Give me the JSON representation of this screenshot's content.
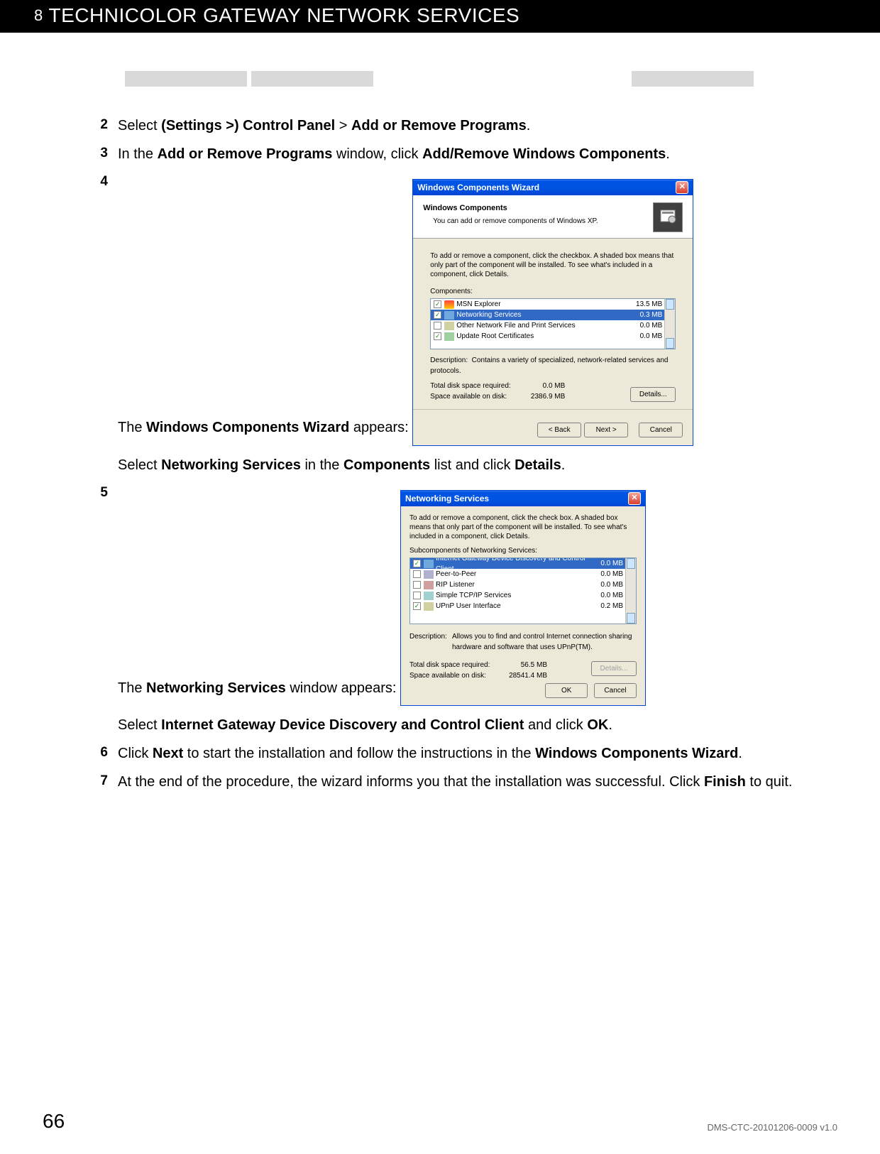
{
  "header": {
    "chapter_num": "8",
    "title": "TECHNICOLOR GATEWAY NETWORK SERVICES"
  },
  "tabs": {
    "widths": [
      172,
      172,
      358,
      172
    ],
    "gaps": [
      176,
      0,
      0,
      0
    ],
    "color": "#d9d9d9"
  },
  "steps": {
    "s2": {
      "num": "2",
      "pre": "Select ",
      "b1": "(Settings >) Control Panel",
      "mid": " > ",
      "b2": "Add or Remove Programs",
      "post": "."
    },
    "s3": {
      "num": "3",
      "pre": "In the ",
      "b1": "Add or Remove Programs",
      "mid": " window, click ",
      "b2": "Add/Remove Windows Components",
      "post": "."
    },
    "s4": {
      "num": "4",
      "pre": "The ",
      "b1": "Windows Components Wizard",
      "post": " appears:"
    },
    "s4b": {
      "pre": "Select ",
      "b1": "Networking Services",
      "mid": " in the ",
      "b2": "Components",
      "mid2": " list and click ",
      "b3": "Details",
      "post": "."
    },
    "s5": {
      "num": "5",
      "pre": "The ",
      "b1": "Networking Services",
      "post": " window appears:"
    },
    "s5b": {
      "pre": "Select ",
      "b1": "Internet Gateway Device Discovery and Control Client",
      "mid": " and click ",
      "b2": "OK",
      "post": "."
    },
    "s6": {
      "num": "6",
      "pre": "Click ",
      "b1": "Next",
      "mid": " to start the installation and follow the instructions in the ",
      "b2": "Windows Components Wizard",
      "post": "."
    },
    "s7": {
      "num": "7",
      "pre": "At the end of the procedure, the wizard informs you that the installation was successful. Click ",
      "b1": "Finish",
      "post": " to quit."
    }
  },
  "dialog1": {
    "title": "Windows Components Wizard",
    "head_t1": "Windows Components",
    "head_t2": "You can add or remove components of Windows XP.",
    "instr": "To add or remove a component, click the checkbox. A shaded box means that only part of the component will be installed. To see what's included in a component, click Details.",
    "list_label": "Components:",
    "rows": [
      {
        "checked": true,
        "half": false,
        "icon": "ic-msn",
        "name": "MSN Explorer",
        "size": "13.5 MB",
        "sel": false
      },
      {
        "checked": true,
        "half": true,
        "icon": "ic-net",
        "name": "Networking Services",
        "size": "0.3 MB",
        "sel": true
      },
      {
        "checked": false,
        "half": false,
        "icon": "ic-file",
        "name": "Other Network File and Print Services",
        "size": "0.0 MB",
        "sel": false
      },
      {
        "checked": true,
        "half": false,
        "icon": "ic-cert",
        "name": "Update Root Certificates",
        "size": "0.0 MB",
        "sel": false
      }
    ],
    "desc_label": "Description:",
    "desc": "Contains a variety of specialized, network-related services and protocols.",
    "req_label": "Total disk space required:",
    "req_val": "0.0 MB",
    "avail_label": "Space available on disk:",
    "avail_val": "2386.9 MB",
    "btn_details": "Details...",
    "btn_back": "< Back",
    "btn_next": "Next >",
    "btn_cancel": "Cancel"
  },
  "dialog2": {
    "title": "Networking Services",
    "instr": "To add or remove a component, click the check box. A shaded box means that only part of the component will be installed. To see what's included in a component, click Details.",
    "list_label": "Subcomponents of Networking Services:",
    "rows": [
      {
        "checked": true,
        "icon": "ic-net",
        "name": "Internet Gateway Device Discovery and Control Client",
        "size": "0.0 MB",
        "sel": true
      },
      {
        "checked": false,
        "icon": "ic-peer",
        "name": "Peer-to-Peer",
        "size": "0.0 MB",
        "sel": false
      },
      {
        "checked": false,
        "icon": "ic-rip",
        "name": "RIP Listener",
        "size": "0.0 MB",
        "sel": false
      },
      {
        "checked": false,
        "icon": "ic-tcp",
        "name": "Simple TCP/IP Services",
        "size": "0.0 MB",
        "sel": false
      },
      {
        "checked": true,
        "icon": "ic-upnp",
        "name": "UPnP User Interface",
        "size": "0.2 MB",
        "sel": false
      }
    ],
    "desc_label": "Description:",
    "desc": "Allows you to find and control Internet connection sharing hardware and software that uses UPnP(TM).",
    "req_label": "Total disk space required:",
    "req_val": "56.5 MB",
    "avail_label": "Space available on disk:",
    "avail_val": "28541.4 MB",
    "btn_details": "Details...",
    "btn_ok": "OK",
    "btn_cancel": "Cancel"
  },
  "footer": {
    "page": "66",
    "docid": "DMS-CTC-20101206-0009 v1.0"
  },
  "colors": {
    "header_bg": "#000000",
    "xp_blue": "#0054e3",
    "xp_sel": "#316ac5",
    "xp_face": "#ece9d8"
  }
}
